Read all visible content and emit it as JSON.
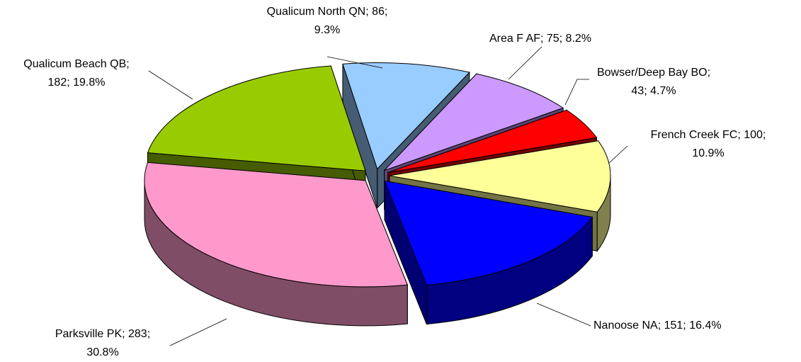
{
  "chart_data": {
    "type": "pie",
    "categories": [
      "Qualicum North  QN",
      "Area F  AF",
      "Bowser/Deep Bay  BO",
      "French Creek  FC",
      "Nanoose  NA",
      "Parksville  PK",
      "Qualicum Beach  QB"
    ],
    "values": [
      86,
      75,
      43,
      100,
      151,
      283,
      182
    ],
    "labels": [
      [
        "Qualicum North  QN; 86;",
        "9.3%"
      ],
      [
        "Area F  AF; 75; 8.2%"
      ],
      [
        "Bowser/Deep Bay  BO;",
        "43; 4.7%"
      ],
      [
        "French Creek  FC; 100;",
        "10.9%"
      ],
      [
        "Nanoose  NA; 151; 16.4%"
      ],
      [
        "Parksville  PK; 283;",
        "30.8%"
      ],
      [
        "Qualicum Beach  QB;",
        "182; 19.8%"
      ]
    ],
    "colors": [
      "#99ccff",
      "#cc99ff",
      "#ff0000",
      "#ffff99",
      "#0000ff",
      "#ff99cc",
      "#99cc00"
    ]
  }
}
